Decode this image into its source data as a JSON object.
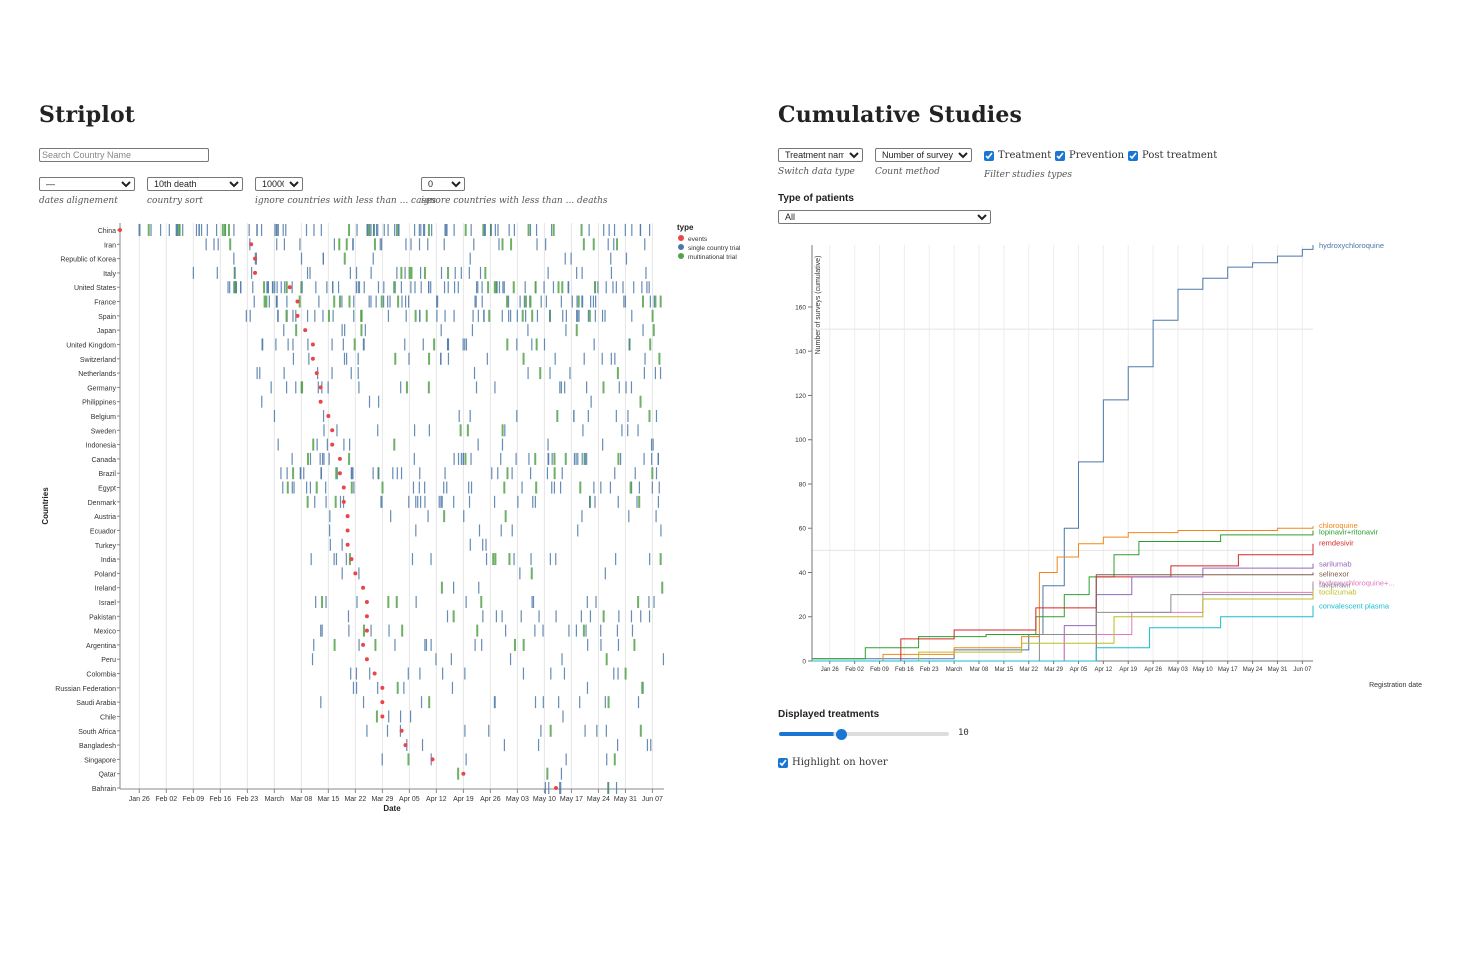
{
  "left": {
    "title": "Striplot",
    "search_placeholder": "Search Country Name",
    "controls": [
      {
        "value": "—",
        "caption": "dates alignement"
      },
      {
        "value": "10th death",
        "caption": "country sort"
      },
      {
        "value": "10000",
        "caption": "ignore countries with less than ... cases"
      },
      {
        "value": "0",
        "caption": "ignore countries with less than ... deaths"
      }
    ]
  },
  "right": {
    "title": "Cumulative Studies",
    "controls": [
      {
        "value": "Treatment name",
        "caption": "Switch data type"
      },
      {
        "value": "Number of surveys",
        "caption": "Count method"
      }
    ],
    "filters": [
      {
        "label": "Treatment",
        "checked": true
      },
      {
        "label": "Prevention",
        "checked": true
      },
      {
        "label": "Post treatment",
        "checked": true
      }
    ],
    "filters_caption": "Filter studies types",
    "patients_label": "Type of patients",
    "patients_value": "All",
    "displayed_label": "Displayed treatments",
    "displayed_value": "10",
    "displayed_fraction": 0.32,
    "highlight_label": "Highlight on hover",
    "highlight_checked": true
  },
  "chart_data": [
    {
      "type": "scatter",
      "xlabel": "Date",
      "ylabel": "Countries",
      "legend_title": "type",
      "legend_position": "top-right",
      "legend": [
        {
          "name": "events",
          "color": "#e8474a",
          "shape": "dot"
        },
        {
          "name": "single country trial",
          "color": "#4c78a8",
          "shape": "dot"
        },
        {
          "name": "multinational trial",
          "color": "#54a24b",
          "shape": "dot"
        }
      ],
      "x_ticks": [
        "Jan 26",
        "Feb 02",
        "Feb 09",
        "Feb 16",
        "Feb 23",
        "March",
        "Mar 08",
        "Mar 15",
        "Mar 22",
        "Mar 29",
        "Apr 05",
        "Apr 12",
        "Apr 19",
        "Apr 26",
        "May 03",
        "May 10",
        "May 17",
        "May 24",
        "May 31",
        "Jun 07"
      ],
      "x_range": [
        "2020-01-21",
        "2020-06-10"
      ],
      "countries": [
        "China",
        "Iran",
        "Republic of Korea",
        "Italy",
        "United States",
        "France",
        "Spain",
        "Japan",
        "United Kingdom",
        "Switzerland",
        "Netherlands",
        "Germany",
        "Philippines",
        "Belgium",
        "Sweden",
        "Indonesia",
        "Canada",
        "Brazil",
        "Egypt",
        "Denmark",
        "Austria",
        "Ecuador",
        "Turkey",
        "India",
        "Poland",
        "Ireland",
        "Israel",
        "Pakistan",
        "Mexico",
        "Argentina",
        "Peru",
        "Colombia",
        "Russian Federation",
        "Saudi Arabia",
        "Chile",
        "South Africa",
        "Bangladesh",
        "Singapore",
        "Qatar",
        "Bahrain"
      ],
      "events": [
        "2020-01-21",
        "2020-02-24",
        "2020-02-25",
        "2020-02-25",
        "2020-03-05",
        "2020-03-07",
        "2020-03-07",
        "2020-03-09",
        "2020-03-11",
        "2020-03-11",
        "2020-03-12",
        "2020-03-13",
        "2020-03-13",
        "2020-03-15",
        "2020-03-16",
        "2020-03-16",
        "2020-03-18",
        "2020-03-18",
        "2020-03-19",
        "2020-03-19",
        "2020-03-20",
        "2020-03-20",
        "2020-03-20",
        "2020-03-21",
        "2020-03-22",
        "2020-03-24",
        "2020-03-25",
        "2020-03-25",
        "2020-03-25",
        "2020-03-24",
        "2020-03-25",
        "2020-03-27",
        "2020-03-29",
        "2020-03-29",
        "2020-03-29",
        "2020-04-03",
        "2020-04-04",
        "2020-04-11",
        "2020-04-19",
        "2020-05-13"
      ],
      "trial_intensity": [
        1.0,
        0.35,
        0.12,
        0.3,
        0.85,
        0.6,
        0.55,
        0.12,
        0.3,
        0.2,
        0.15,
        0.22,
        0.03,
        0.12,
        0.12,
        0.12,
        0.4,
        0.35,
        0.35,
        0.3,
        0.08,
        0.06,
        0.03,
        0.18,
        0.03,
        0.02,
        0.15,
        0.15,
        0.18,
        0.15,
        0.06,
        0.12,
        0.08,
        0.12,
        0.03,
        0.1,
        0.05,
        0.06,
        0.01,
        0.05
      ]
    },
    {
      "type": "line",
      "xlabel": "Registration date",
      "ylabel": "Number of surveys (cumulative)",
      "x_ticks": [
        "Jan 26",
        "Feb 02",
        "Feb 09",
        "Feb 16",
        "Feb 23",
        "March",
        "Mar 08",
        "Mar 15",
        "Mar 22",
        "Mar 29",
        "Apr 05",
        "Apr 12",
        "Apr 19",
        "Apr 26",
        "May 03",
        "May 10",
        "May 17",
        "May 24",
        "May 31",
        "Jun 07"
      ],
      "y_ticks": [
        0,
        20,
        40,
        60,
        80,
        100,
        120,
        140,
        160
      ],
      "ylim": [
        0,
        188
      ],
      "x_range": [
        "2020-01-21",
        "2020-06-10"
      ],
      "grid": true,
      "series": [
        {
          "name": "hydroxychloroquine",
          "color": "#4c78a8",
          "x": [
            "2020-01-21",
            "2020-03-01",
            "2020-03-22",
            "2020-03-26",
            "2020-04-01",
            "2020-04-05",
            "2020-04-12",
            "2020-04-19",
            "2020-04-26",
            "2020-05-03",
            "2020-05-10",
            "2020-05-17",
            "2020-05-24",
            "2020-05-31",
            "2020-06-07",
            "2020-06-10"
          ],
          "y": [
            1,
            5,
            12,
            34,
            60,
            90,
            118,
            133,
            154,
            168,
            173,
            178,
            180,
            183,
            186,
            188
          ]
        },
        {
          "name": "chloroquine",
          "color": "#f58518",
          "x": [
            "2020-01-21",
            "2020-02-10",
            "2020-03-01",
            "2020-03-20",
            "2020-03-25",
            "2020-03-30",
            "2020-04-05",
            "2020-04-12",
            "2020-04-19",
            "2020-05-03",
            "2020-05-31",
            "2020-06-10"
          ],
          "y": [
            0,
            3,
            6,
            11,
            40,
            47,
            53,
            56,
            58,
            59,
            60,
            61
          ]
        },
        {
          "name": "lopinavir+ritonavir",
          "color": "#2ca02c",
          "x": [
            "2020-01-21",
            "2020-02-05",
            "2020-02-20",
            "2020-03-10",
            "2020-03-24",
            "2020-04-01",
            "2020-04-08",
            "2020-04-15",
            "2020-04-22",
            "2020-05-15",
            "2020-06-10"
          ],
          "y": [
            1,
            6,
            11,
            12,
            20,
            30,
            38,
            48,
            54,
            57,
            59
          ]
        },
        {
          "name": "remdesivir",
          "color": "#d62728",
          "x": [
            "2020-01-21",
            "2020-02-15",
            "2020-03-01",
            "2020-03-19",
            "2020-03-24",
            "2020-04-10",
            "2020-05-01",
            "2020-05-20",
            "2020-06-10"
          ],
          "y": [
            0,
            10,
            14,
            14,
            24,
            38,
            43,
            48,
            53
          ]
        },
        {
          "name": "sarilumab",
          "color": "#9467bd",
          "x": [
            "2020-01-21",
            "2020-03-20",
            "2020-04-01",
            "2020-04-10",
            "2020-04-20",
            "2020-05-10",
            "2020-06-10"
          ],
          "y": [
            0,
            0,
            16,
            30,
            38,
            42,
            44
          ]
        },
        {
          "name": "selinexor",
          "color": "#7f5a4a",
          "x": [
            "2020-01-21",
            "2020-03-25",
            "2020-04-08",
            "2020-04-10",
            "2020-06-10"
          ],
          "y": [
            0,
            0,
            0,
            39,
            40
          ]
        },
        {
          "name": "hydroxychloroquine+azithromycin",
          "color": "#e377c2",
          "x": [
            "2020-01-21",
            "2020-03-15",
            "2020-04-01",
            "2020-04-20",
            "2020-05-10",
            "2020-06-10"
          ],
          "y": [
            0,
            0,
            12,
            22,
            31,
            36
          ]
        },
        {
          "name": "tocilizumab",
          "color": "#8c8c8c",
          "x": [
            "2020-01-21",
            "2020-03-10",
            "2020-03-25",
            "2020-04-10",
            "2020-05-01",
            "2020-06-10"
          ],
          "y": [
            0,
            0,
            12,
            22,
            30,
            35
          ]
        },
        {
          "name": "favipiravir",
          "color": "#bcbd22",
          "x": [
            "2020-01-21",
            "2020-02-20",
            "2020-03-20",
            "2020-04-15",
            "2020-05-10",
            "2020-06-10"
          ],
          "y": [
            0,
            4,
            8,
            20,
            28,
            32
          ]
        },
        {
          "name": "convalescent plasma",
          "color": "#17becf",
          "x": [
            "2020-01-21",
            "2020-03-25",
            "2020-04-10",
            "2020-04-25",
            "2020-05-15",
            "2020-06-10"
          ],
          "y": [
            0,
            0,
            6,
            15,
            20,
            25
          ]
        }
      ],
      "label_texts": [
        "hydroxychloroquine",
        "chloroquine",
        "lopinavir+ritonavir",
        "remdesivir",
        "sarilumab",
        "selinexor",
        "hydroxychloroquine+...",
        "favipiravir",
        "tocilizumab",
        "convalescent plasma"
      ]
    }
  ]
}
